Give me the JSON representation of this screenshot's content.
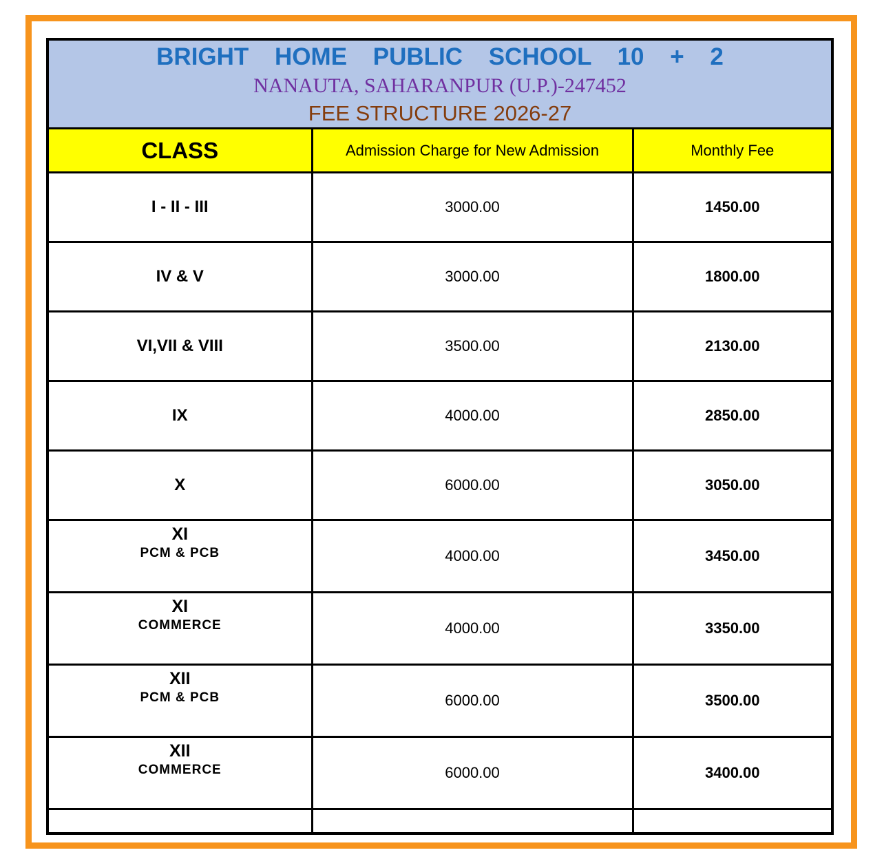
{
  "header": {
    "school_name": "BRIGHT HOME PUBLIC SCHOOL 10 + 2",
    "address": "NANAUTA, SAHARANPUR (U.P.)-247452",
    "title": "FEE STRUCTURE 2026-27"
  },
  "columns": {
    "class": "CLASS",
    "admission": "Admission Charge for New Admission",
    "monthly": "Monthly Fee"
  },
  "rows": [
    {
      "class": "I -  II - III",
      "sub": "",
      "admission": "3000.00",
      "monthly": "1450.00"
    },
    {
      "class": "IV & V",
      "sub": "",
      "admission": "3000.00",
      "monthly": "1800.00"
    },
    {
      "class": "VI,VII & VIII",
      "sub": "",
      "admission": "3500.00",
      "monthly": "2130.00"
    },
    {
      "class": "IX",
      "sub": "",
      "admission": "4000.00",
      "monthly": "2850.00"
    },
    {
      "class": "X",
      "sub": "",
      "admission": "6000.00",
      "monthly": "3050.00"
    },
    {
      "class": "XI",
      "sub": "PCM & PCB",
      "admission": "4000.00",
      "monthly": "3450.00"
    },
    {
      "class": "XI",
      "sub": "COMMERCE",
      "admission": "4000.00",
      "monthly": "3350.00"
    },
    {
      "class": "XII",
      "sub": "PCM & PCB",
      "admission": "6000.00",
      "monthly": "3500.00"
    },
    {
      "class": "XII",
      "sub": "COMMERCE",
      "admission": "6000.00",
      "monthly": "3400.00"
    }
  ],
  "colors": {
    "border": "#f7941d",
    "header_bg": "#b4c6e7",
    "column_header_bg": "#ffff00",
    "school_name": "#1f6fbf",
    "address": "#7030a0",
    "title": "#843c0c"
  }
}
